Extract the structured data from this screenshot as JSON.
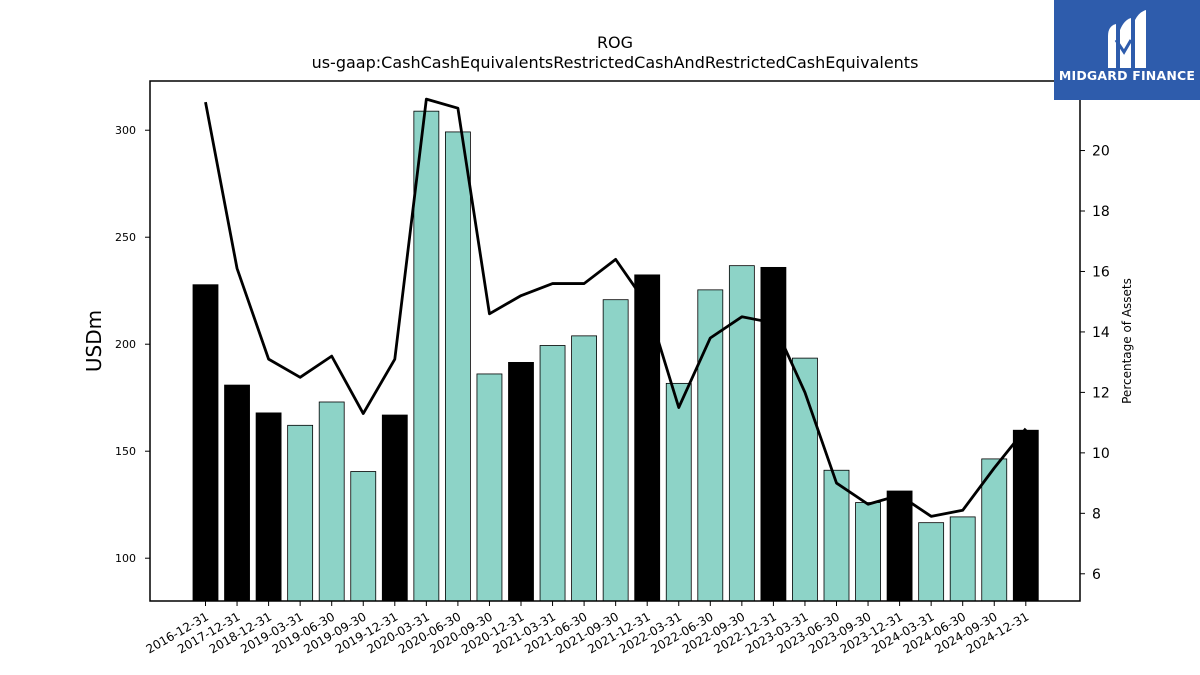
{
  "brand": {
    "name": "MIDGARD FINANCE",
    "color": "#2e5cac"
  },
  "chart_data": {
    "type": "bar",
    "title": "ROG",
    "subtitle": "us-gaap:CashCashEquivalentsRestrictedCashAndRestrictedCashEquivalents",
    "ylabel": "USDm",
    "y2label": "Percentage of Assets",
    "ylim": [
      80,
      323
    ],
    "y2lim": [
      5.1,
      22.3
    ],
    "yticks": [
      100,
      150,
      200,
      250,
      300
    ],
    "y2ticks": [
      6,
      8,
      10,
      12,
      14,
      16,
      18,
      20
    ],
    "grid": false,
    "colors": {
      "annual": "#000000",
      "quarterly": "#8dd3c7",
      "line": "#000000"
    },
    "categories": [
      "2016-12-31",
      "2017-12-31",
      "2018-12-31",
      "2019-03-31",
      "2019-06-30",
      "2019-09-30",
      "2019-12-31",
      "2020-03-31",
      "2020-06-30",
      "2020-09-30",
      "2020-12-31",
      "2021-03-31",
      "2021-06-30",
      "2021-09-30",
      "2021-12-31",
      "2022-03-31",
      "2022-06-30",
      "2022-09-30",
      "2022-12-31",
      "2023-03-31",
      "2023-06-30",
      "2023-09-30",
      "2023-12-31",
      "2024-03-31",
      "2024-06-30",
      "2024-09-30",
      "2024-12-31"
    ],
    "series": [
      {
        "type": "bar",
        "values": [
          227.8,
          180.9,
          167.9,
          162.1,
          173.0,
          140.5,
          166.9,
          308.9,
          299.2,
          186.1,
          191.5,
          199.4,
          203.9,
          220.8,
          232.4,
          181.7,
          225.4,
          236.7,
          235.9,
          193.5,
          141.1,
          126.0,
          131.4,
          116.6,
          119.3,
          146.4,
          159.8
        ],
        "period": [
          "annual",
          "annual",
          "annual",
          "quarterly",
          "quarterly",
          "quarterly",
          "annual",
          "quarterly",
          "quarterly",
          "quarterly",
          "annual",
          "quarterly",
          "quarterly",
          "quarterly",
          "annual",
          "quarterly",
          "quarterly",
          "quarterly",
          "annual",
          "quarterly",
          "quarterly",
          "quarterly",
          "annual",
          "quarterly",
          "quarterly",
          "quarterly",
          "annual"
        ]
      },
      {
        "type": "line",
        "axis": "right",
        "values": [
          21.6,
          16.1,
          13.1,
          12.5,
          13.2,
          11.3,
          13.1,
          21.7,
          21.4,
          14.6,
          15.2,
          15.6,
          15.6,
          16.4,
          14.9,
          11.5,
          13.8,
          14.5,
          14.3,
          12.0,
          9.0,
          8.3,
          8.6,
          7.9,
          8.1,
          9.5,
          10.8
        ]
      }
    ]
  }
}
